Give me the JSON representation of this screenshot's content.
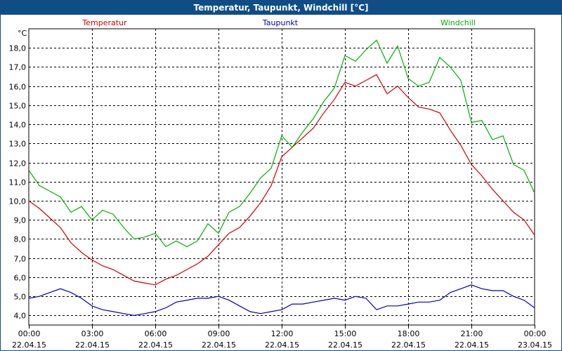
{
  "window": {
    "title": "Temperatur, Taupunkt, Windchill [°C]"
  },
  "colors": {
    "temperatur": "#d00000",
    "taupunkt": "#0000c0",
    "windchill": "#00b000",
    "title_bg": "#0f4d86"
  },
  "chart_data": {
    "type": "line",
    "title": "Temperatur, Taupunkt, Windchill [°C]",
    "ylabel": "°C",
    "xlabel": "",
    "ylim": [
      3.5,
      19.0
    ],
    "xlim": [
      0,
      24
    ],
    "grid": true,
    "legend_position": "top",
    "y_ticks": [
      "4,0",
      "5,0",
      "6,0",
      "7,0",
      "8,0",
      "9,0",
      "10,0",
      "11,0",
      "12,0",
      "13,0",
      "14,0",
      "15,0",
      "16,0",
      "17,0",
      "18,0"
    ],
    "x_ticks": [
      {
        "time": "00:00",
        "date": "22.04.15"
      },
      {
        "time": "03:00",
        "date": "22.04.15"
      },
      {
        "time": "06:00",
        "date": "22.04.15"
      },
      {
        "time": "09:00",
        "date": "22.04.15"
      },
      {
        "time": "12:00",
        "date": "22.04.15"
      },
      {
        "time": "15:00",
        "date": "22.04.15"
      },
      {
        "time": "18:00",
        "date": "22.04.15"
      },
      {
        "time": "21:00",
        "date": "22.04.15"
      },
      {
        "time": "00:00",
        "date": "23.04.15"
      }
    ],
    "series": [
      {
        "name": "Temperatur",
        "color": "#d00000",
        "x": [
          0,
          0.5,
          1,
          1.5,
          2,
          2.5,
          3,
          3.5,
          4,
          4.5,
          5,
          5.5,
          6,
          6.5,
          7,
          7.5,
          8,
          8.5,
          9,
          9.5,
          10,
          10.5,
          11,
          11.5,
          12,
          12.5,
          13,
          13.5,
          14,
          14.5,
          15,
          15.5,
          16,
          16.5,
          17,
          17.5,
          18,
          18.5,
          19,
          19.5,
          20,
          20.5,
          21,
          21.5,
          22,
          22.5,
          23,
          23.5,
          24
        ],
        "values": [
          10.0,
          9.6,
          9.1,
          8.6,
          7.8,
          7.3,
          6.9,
          6.6,
          6.4,
          6.1,
          5.8,
          5.7,
          5.6,
          5.9,
          6.1,
          6.4,
          6.7,
          7.1,
          7.7,
          8.3,
          8.6,
          9.2,
          9.9,
          10.8,
          12.3,
          12.8,
          13.3,
          13.8,
          14.6,
          15.3,
          16.2,
          16.0,
          16.3,
          16.6,
          15.6,
          16.0,
          15.4,
          14.9,
          14.8,
          14.6,
          13.7,
          12.9,
          11.9,
          11.3,
          10.6,
          10.0,
          9.4,
          9.0,
          8.2
        ]
      },
      {
        "name": "Taupunkt",
        "color": "#0000c0",
        "x": [
          0,
          0.5,
          1,
          1.5,
          2,
          2.5,
          3,
          3.5,
          4,
          4.5,
          5,
          5.5,
          6,
          6.5,
          7,
          7.5,
          8,
          8.5,
          9,
          9.5,
          10,
          10.5,
          11,
          11.5,
          12,
          12.5,
          13,
          13.5,
          14,
          14.5,
          15,
          15.5,
          16,
          16.5,
          17,
          17.5,
          18,
          18.5,
          19,
          19.5,
          20,
          20.5,
          21,
          21.5,
          22,
          22.5,
          23,
          23.5,
          24
        ],
        "values": [
          4.9,
          5.0,
          5.2,
          5.4,
          5.2,
          4.9,
          4.5,
          4.3,
          4.2,
          4.1,
          4.0,
          4.1,
          4.2,
          4.4,
          4.7,
          4.8,
          4.9,
          4.9,
          5.0,
          4.8,
          4.5,
          4.2,
          4.1,
          4.2,
          4.3,
          4.6,
          4.6,
          4.7,
          4.8,
          4.9,
          4.8,
          5.0,
          4.9,
          4.3,
          4.5,
          4.5,
          4.6,
          4.7,
          4.7,
          4.8,
          5.2,
          5.4,
          5.6,
          5.4,
          5.3,
          5.3,
          5.0,
          4.8,
          4.4
        ]
      },
      {
        "name": "Windchill",
        "color": "#00b000",
        "x": [
          0,
          0.5,
          1,
          1.5,
          2,
          2.5,
          3,
          3.5,
          4,
          4.5,
          5,
          5.5,
          6,
          6.5,
          7,
          7.5,
          8,
          8.5,
          9,
          9.5,
          10,
          10.5,
          11,
          11.5,
          12,
          12.5,
          13,
          13.5,
          14,
          14.5,
          15,
          15.5,
          16,
          16.5,
          17,
          17.5,
          18,
          18.5,
          19,
          19.5,
          20,
          20.5,
          21,
          21.5,
          22,
          22.5,
          23,
          23.5,
          24
        ],
        "values": [
          11.6,
          10.8,
          10.5,
          10.2,
          9.4,
          9.7,
          9.0,
          9.5,
          9.3,
          8.6,
          8.0,
          8.1,
          8.3,
          7.6,
          7.9,
          7.6,
          7.9,
          8.8,
          8.3,
          9.4,
          9.7,
          10.4,
          11.2,
          11.7,
          13.4,
          12.8,
          13.6,
          14.3,
          15.2,
          15.9,
          17.6,
          17.3,
          17.9,
          18.4,
          17.2,
          18.1,
          16.4,
          16.0,
          16.2,
          17.5,
          17.0,
          16.3,
          14.1,
          14.2,
          13.2,
          13.4,
          11.9,
          11.6,
          10.4
        ]
      }
    ]
  }
}
